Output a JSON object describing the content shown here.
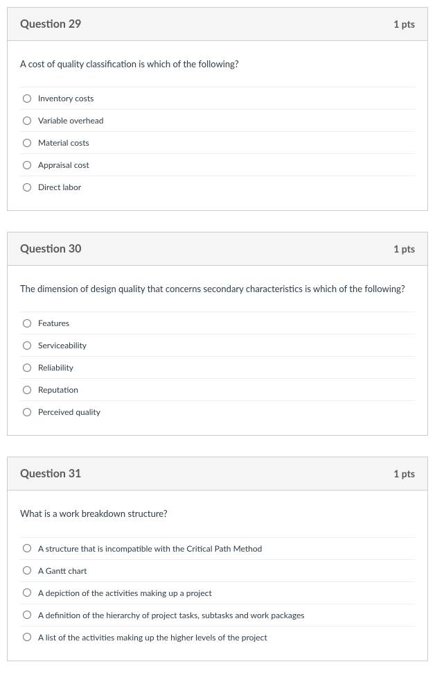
{
  "questions": [
    {
      "title": "Question 29",
      "points": "1 pts",
      "text": "A cost of quality classification is which of the following?",
      "options": [
        "Inventory costs",
        "Variable overhead",
        "Material costs",
        "Appraisal cost",
        "Direct labor"
      ]
    },
    {
      "title": "Question 30",
      "points": "1 pts",
      "text": "The dimension of design quality that concerns secondary characteristics is which of the following?",
      "options": [
        "Features",
        "Serviceability",
        "Reliability",
        "Reputation",
        "Perceived quality"
      ]
    },
    {
      "title": "Question 31",
      "points": "1 pts",
      "text": "What is a work breakdown structure?",
      "options": [
        "A structure that is incompatible with the Critical Path Method",
        "A Gantt chart",
        "A depiction of the activities making up a project",
        "A definition of the hierarchy of project tasks, subtasks and work packages",
        "A list of the activities making up the higher levels of the project"
      ]
    }
  ],
  "colors": {
    "card_border": "#c7cdd1",
    "header_bg": "#f5f5f5",
    "title_color": "#595959",
    "text_color": "#2d3b45",
    "divider": "#eeeeee"
  }
}
